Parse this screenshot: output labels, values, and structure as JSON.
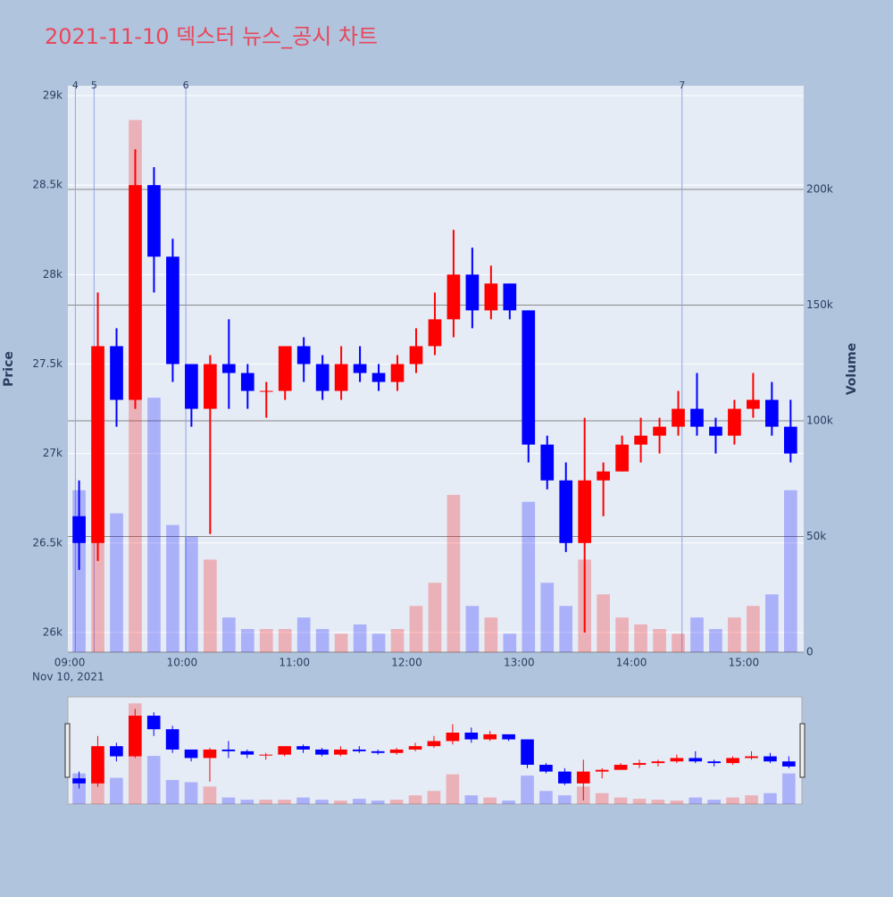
{
  "chart_data": {
    "type": "candlestick",
    "title": "2021-11-10 덱스터 뉴스_공시 차트",
    "ylabel": "Price",
    "y2label": "Volume",
    "x_date_label": "Nov 10, 2021",
    "x": [
      "09:00",
      "09:10",
      "09:20",
      "09:30",
      "09:40",
      "09:50",
      "10:00",
      "10:10",
      "10:20",
      "10:30",
      "10:40",
      "10:50",
      "11:00",
      "11:10",
      "11:20",
      "11:30",
      "11:40",
      "11:50",
      "12:00",
      "12:10",
      "12:20",
      "12:30",
      "12:40",
      "12:50",
      "13:00",
      "13:10",
      "13:20",
      "13:30",
      "13:40",
      "13:50",
      "14:00",
      "14:10",
      "14:20",
      "14:30",
      "14:40",
      "14:50",
      "15:00",
      "15:10",
      "15:20"
    ],
    "open": [
      26650,
      26500,
      27600,
      27300,
      28500,
      28100,
      27500,
      27250,
      27500,
      27450,
      27350,
      27350,
      27600,
      27500,
      27350,
      27500,
      27450,
      27400,
      27500,
      27600,
      27750,
      28000,
      27800,
      27950,
      27800,
      27050,
      26850,
      26500,
      26850,
      26900,
      27050,
      27100,
      27150,
      27250,
      27150,
      27100,
      27250,
      27300,
      27150
    ],
    "high": [
      26850,
      27900,
      27700,
      28700,
      28600,
      28200,
      27500,
      27550,
      27750,
      27500,
      27400,
      27600,
      27650,
      27550,
      27600,
      27600,
      27500,
      27550,
      27700,
      27900,
      28250,
      28150,
      28050,
      27950,
      27800,
      27100,
      26950,
      27200,
      26950,
      27100,
      27200,
      27200,
      27350,
      27450,
      27200,
      27300,
      27450,
      27400,
      27300
    ],
    "low": [
      26350,
      26400,
      27150,
      27250,
      27900,
      27400,
      27150,
      26550,
      27250,
      27250,
      27200,
      27300,
      27400,
      27300,
      27300,
      27400,
      27350,
      27350,
      27450,
      27550,
      27650,
      27700,
      27750,
      27750,
      26950,
      26800,
      26450,
      26000,
      26650,
      26900,
      26950,
      27000,
      27100,
      27100,
      27000,
      27050,
      27200,
      27100,
      26950
    ],
    "close": [
      26500,
      27600,
      27300,
      28500,
      28100,
      27500,
      27250,
      27500,
      27450,
      27350,
      27350,
      27600,
      27500,
      27350,
      27500,
      27450,
      27400,
      27500,
      27600,
      27750,
      28000,
      27800,
      27950,
      27800,
      27050,
      26850,
      26500,
      26850,
      26900,
      27050,
      27100,
      27150,
      27250,
      27150,
      27100,
      27250,
      27300,
      27150,
      27000
    ],
    "volume": [
      70000,
      90000,
      60000,
      230000,
      110000,
      55000,
      50000,
      40000,
      15000,
      10000,
      10000,
      10000,
      15000,
      10000,
      8000,
      12000,
      8000,
      10000,
      20000,
      30000,
      68000,
      20000,
      15000,
      8000,
      65000,
      30000,
      20000,
      40000,
      25000,
      15000,
      12000,
      10000,
      8000,
      15000,
      10000,
      15000,
      20000,
      25000,
      70000
    ],
    "increasing_color": "#ff0000",
    "decreasing_color": "#0000ff",
    "xlim": [
      "08:59",
      "15:32"
    ],
    "xticks": [
      "09:00",
      "10:00",
      "11:00",
      "12:00",
      "13:00",
      "14:00",
      "15:00"
    ],
    "ylim": [
      25890,
      29055
    ],
    "yticks": [
      {
        "value": 26000,
        "label": "26k"
      },
      {
        "value": 26500,
        "label": "26.5k"
      },
      {
        "value": 27000,
        "label": "27k"
      },
      {
        "value": 27500,
        "label": "27.5k"
      },
      {
        "value": 28000,
        "label": "28k"
      },
      {
        "value": 28500,
        "label": "28.5k"
      },
      {
        "value": 29000,
        "label": "29k"
      }
    ],
    "y2lim": [
      0,
      244800
    ],
    "y2ticks": [
      0,
      {
        "value": 50000,
        "label": "50k"
      },
      {
        "value": 100000,
        "label": "100k"
      },
      {
        "value": 150000,
        "label": "150k"
      },
      {
        "value": 200000,
        "label": "200k"
      }
    ],
    "annotations": [
      {
        "x": "09:03",
        "label": "4"
      },
      {
        "x": "09:13",
        "label": "5"
      },
      {
        "x": "10:02",
        "label": "6"
      },
      {
        "x": "14:27",
        "label": "7"
      }
    ],
    "grid": true,
    "range_slider": true
  }
}
